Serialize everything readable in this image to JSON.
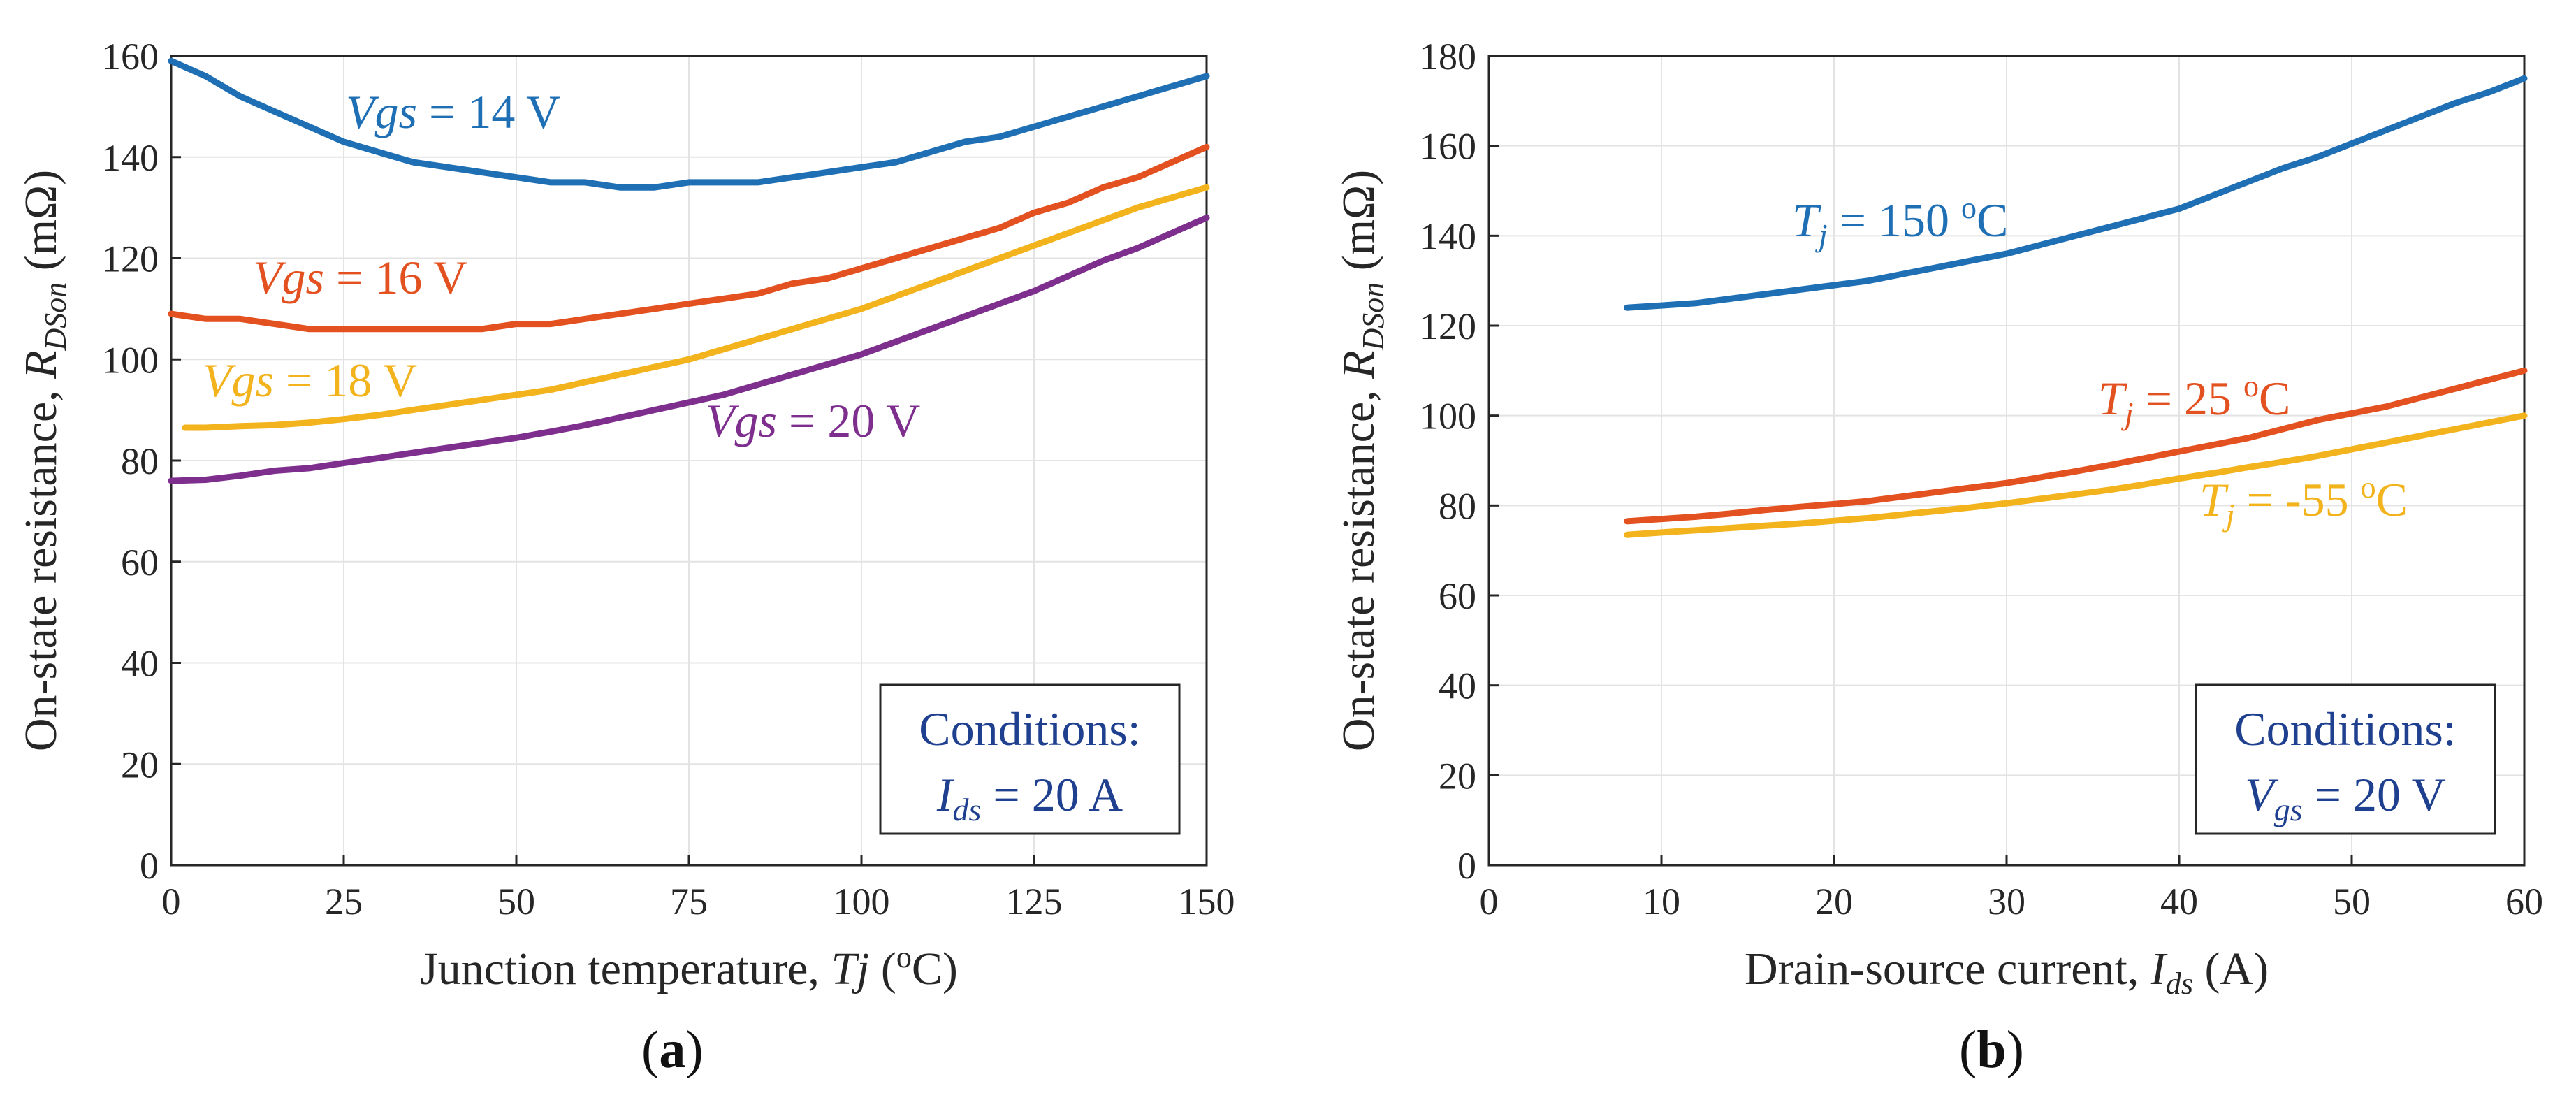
{
  "chart_data": [
    {
      "type": "line",
      "panel_label": "(a)",
      "panel_letter": "a",
      "xlabel_prefix": "Junction temperature, ",
      "xlabel_var": "Tj",
      "xlabel_open": " (",
      "xlabel_sup": "o",
      "xlabel_unit": "C)",
      "ylabel_prefix": "On-state resistance, ",
      "ylabel_var": "R",
      "ylabel_sub": "DSon",
      "ylabel_unit": " (mΩ)",
      "xlim": [
        0,
        150
      ],
      "ylim": [
        0,
        160
      ],
      "xticks": [
        0,
        25,
        50,
        75,
        100,
        125,
        150
      ],
      "yticks": [
        0,
        20,
        40,
        60,
        80,
        100,
        120,
        140,
        160
      ],
      "grid": true,
      "series": [
        {
          "name": "Vgs = 14 V",
          "label_var": "Vgs",
          "label_rest": " = 14 V",
          "color": "#1f6fb5",
          "x": [
            0,
            5,
            10,
            15,
            20,
            25,
            30,
            35,
            40,
            45,
            50,
            55,
            60,
            65,
            70,
            75,
            80,
            85,
            90,
            95,
            100,
            105,
            110,
            115,
            120,
            125,
            130,
            135,
            140,
            145,
            150
          ],
          "y": [
            159,
            156,
            152,
            149,
            146,
            143,
            141,
            139,
            138,
            137,
            136,
            135,
            135,
            134,
            134,
            135,
            135,
            135,
            136,
            137,
            138,
            139,
            141,
            143,
            144,
            146,
            148,
            150,
            152,
            154,
            156
          ]
        },
        {
          "name": "Vgs = 16 V",
          "label_var": "Vgs",
          "label_rest": " = 16 V",
          "color": "#e2511f",
          "x": [
            0,
            5,
            10,
            15,
            20,
            25,
            30,
            35,
            40,
            45,
            50,
            55,
            60,
            65,
            70,
            75,
            80,
            85,
            90,
            95,
            100,
            105,
            110,
            115,
            120,
            125,
            130,
            135,
            140,
            145,
            150
          ],
          "y": [
            109,
            108,
            108,
            107,
            106,
            106,
            106,
            106,
            106,
            106,
            107,
            107,
            108,
            109,
            110,
            111,
            112,
            113,
            115,
            116,
            118,
            120,
            122,
            124,
            126,
            129,
            131,
            134,
            136,
            139,
            142
          ]
        },
        {
          "name": "Vgs = 18 V",
          "label_var": "Vgs",
          "label_rest": " = 18 V",
          "color": "#f2b31c",
          "x": [
            2,
            5,
            10,
            15,
            20,
            25,
            30,
            35,
            40,
            45,
            50,
            55,
            60,
            65,
            70,
            75,
            80,
            85,
            90,
            95,
            100,
            105,
            110,
            115,
            120,
            125,
            130,
            135,
            140,
            145,
            150
          ],
          "y": [
            86.5,
            86.5,
            86.8,
            87,
            87.5,
            88.2,
            89,
            90,
            91,
            92,
            93,
            94,
            95.5,
            97,
            98.5,
            100,
            102,
            104,
            106,
            108,
            110,
            112.5,
            115,
            117.5,
            120,
            122.5,
            125,
            127.5,
            130,
            132,
            134
          ]
        },
        {
          "name": "Vgs = 20 V",
          "label_var": "Vgs",
          "label_rest": " = 20 V",
          "color": "#7e2f8e",
          "x": [
            0,
            5,
            10,
            15,
            20,
            25,
            30,
            35,
            40,
            45,
            50,
            55,
            60,
            65,
            70,
            75,
            80,
            85,
            90,
            95,
            100,
            105,
            110,
            115,
            120,
            125,
            130,
            135,
            140,
            145,
            150
          ],
          "y": [
            76,
            76.2,
            77,
            78,
            78.5,
            79.5,
            80.5,
            81.5,
            82.5,
            83.5,
            84.5,
            85.7,
            87,
            88.5,
            90,
            91.5,
            93,
            95,
            97,
            99,
            101,
            103.5,
            106,
            108.5,
            111,
            113.5,
            116.5,
            119.5,
            122,
            125,
            128
          ]
        }
      ],
      "conditions": {
        "title": "Conditions:",
        "var": "I",
        "var_sub": "ds",
        "rest": " = 20 A"
      }
    },
    {
      "type": "line",
      "panel_label": "(b)",
      "panel_letter": "b",
      "xlabel_prefix": "Drain-source current, ",
      "xlabel_var": "I",
      "xlabel_sub": "ds",
      "xlabel_unit": " (A)",
      "ylabel_prefix": "On-state resistance, ",
      "ylabel_var": "R",
      "ylabel_sub": "DSon",
      "ylabel_unit": " (mΩ)",
      "xlim": [
        0,
        60
      ],
      "ylim": [
        0,
        180
      ],
      "xticks": [
        0,
        10,
        20,
        30,
        40,
        50,
        60
      ],
      "yticks": [
        0,
        20,
        40,
        60,
        80,
        100,
        120,
        140,
        160,
        180
      ],
      "grid": true,
      "series": [
        {
          "name": "Tj = 150 oC",
          "label_var": "T",
          "label_sub": "j",
          "label_mid": " = 150 ",
          "label_sup": "o",
          "label_end": "C",
          "color": "#1f6fb5",
          "x": [
            8,
            10,
            12,
            14,
            16,
            18,
            20,
            22,
            24,
            26,
            28,
            30,
            32,
            34,
            36,
            38,
            40,
            42,
            44,
            46,
            48,
            50,
            52,
            54,
            56,
            58,
            60
          ],
          "y": [
            124,
            124.5,
            125,
            126,
            127,
            128,
            129,
            130,
            131.5,
            133,
            134.5,
            136,
            138,
            140,
            142,
            144,
            146,
            149,
            152,
            155,
            157.5,
            160.5,
            163.5,
            166.5,
            169.5,
            172,
            175
          ]
        },
        {
          "name": "Tj = 25 oC",
          "label_var": "T",
          "label_sub": "j",
          "label_mid": " = 25 ",
          "label_sup": "o",
          "label_end": "C",
          "color": "#e2511f",
          "x": [
            8,
            10,
            12,
            14,
            16,
            18,
            20,
            22,
            24,
            26,
            28,
            30,
            32,
            34,
            36,
            38,
            40,
            42,
            44,
            46,
            48,
            50,
            52,
            54,
            56,
            58,
            60
          ],
          "y": [
            76.5,
            77,
            77.5,
            78.2,
            79,
            79.7,
            80.3,
            81,
            82,
            83,
            84,
            85,
            86.3,
            87.6,
            89,
            90.5,
            92,
            93.5,
            95,
            97,
            99,
            100.5,
            102,
            104,
            106,
            108,
            110
          ]
        },
        {
          "name": "Tj = -55 oC",
          "label_var": "T",
          "label_sub": "j",
          "label_mid": " = -55 ",
          "label_sup": "o",
          "label_end": "C",
          "color": "#f2b31c",
          "x": [
            8,
            10,
            12,
            14,
            16,
            18,
            20,
            22,
            24,
            26,
            28,
            30,
            32,
            34,
            36,
            38,
            40,
            42,
            44,
            46,
            48,
            50,
            52,
            54,
            56,
            58,
            60
          ],
          "y": [
            73.5,
            74,
            74.5,
            75,
            75.5,
            76,
            76.6,
            77.2,
            78,
            78.8,
            79.6,
            80.5,
            81.5,
            82.5,
            83.5,
            84.7,
            86,
            87.2,
            88.5,
            89.7,
            91,
            92.5,
            94,
            95.5,
            97,
            98.5,
            100
          ]
        }
      ],
      "conditions": {
        "title": "Conditions:",
        "var": "V",
        "var_sub": "gs",
        "rest": " = 20 V"
      }
    }
  ]
}
